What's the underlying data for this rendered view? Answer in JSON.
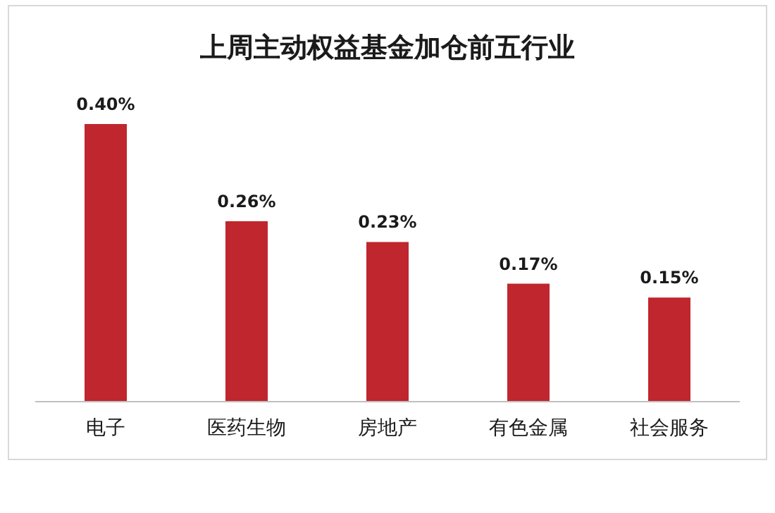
{
  "chart_data": {
    "type": "bar",
    "title": "上周主动权益基金加仓前五行业",
    "categories": [
      "电子",
      "医药生物",
      "房地产",
      "有色金属",
      "社会服务"
    ],
    "values": [
      0.4,
      0.26,
      0.23,
      0.17,
      0.15
    ],
    "value_labels": [
      "0.40%",
      "0.26%",
      "0.23%",
      "0.17%",
      "0.15%"
    ],
    "color": "#c0262d"
  }
}
